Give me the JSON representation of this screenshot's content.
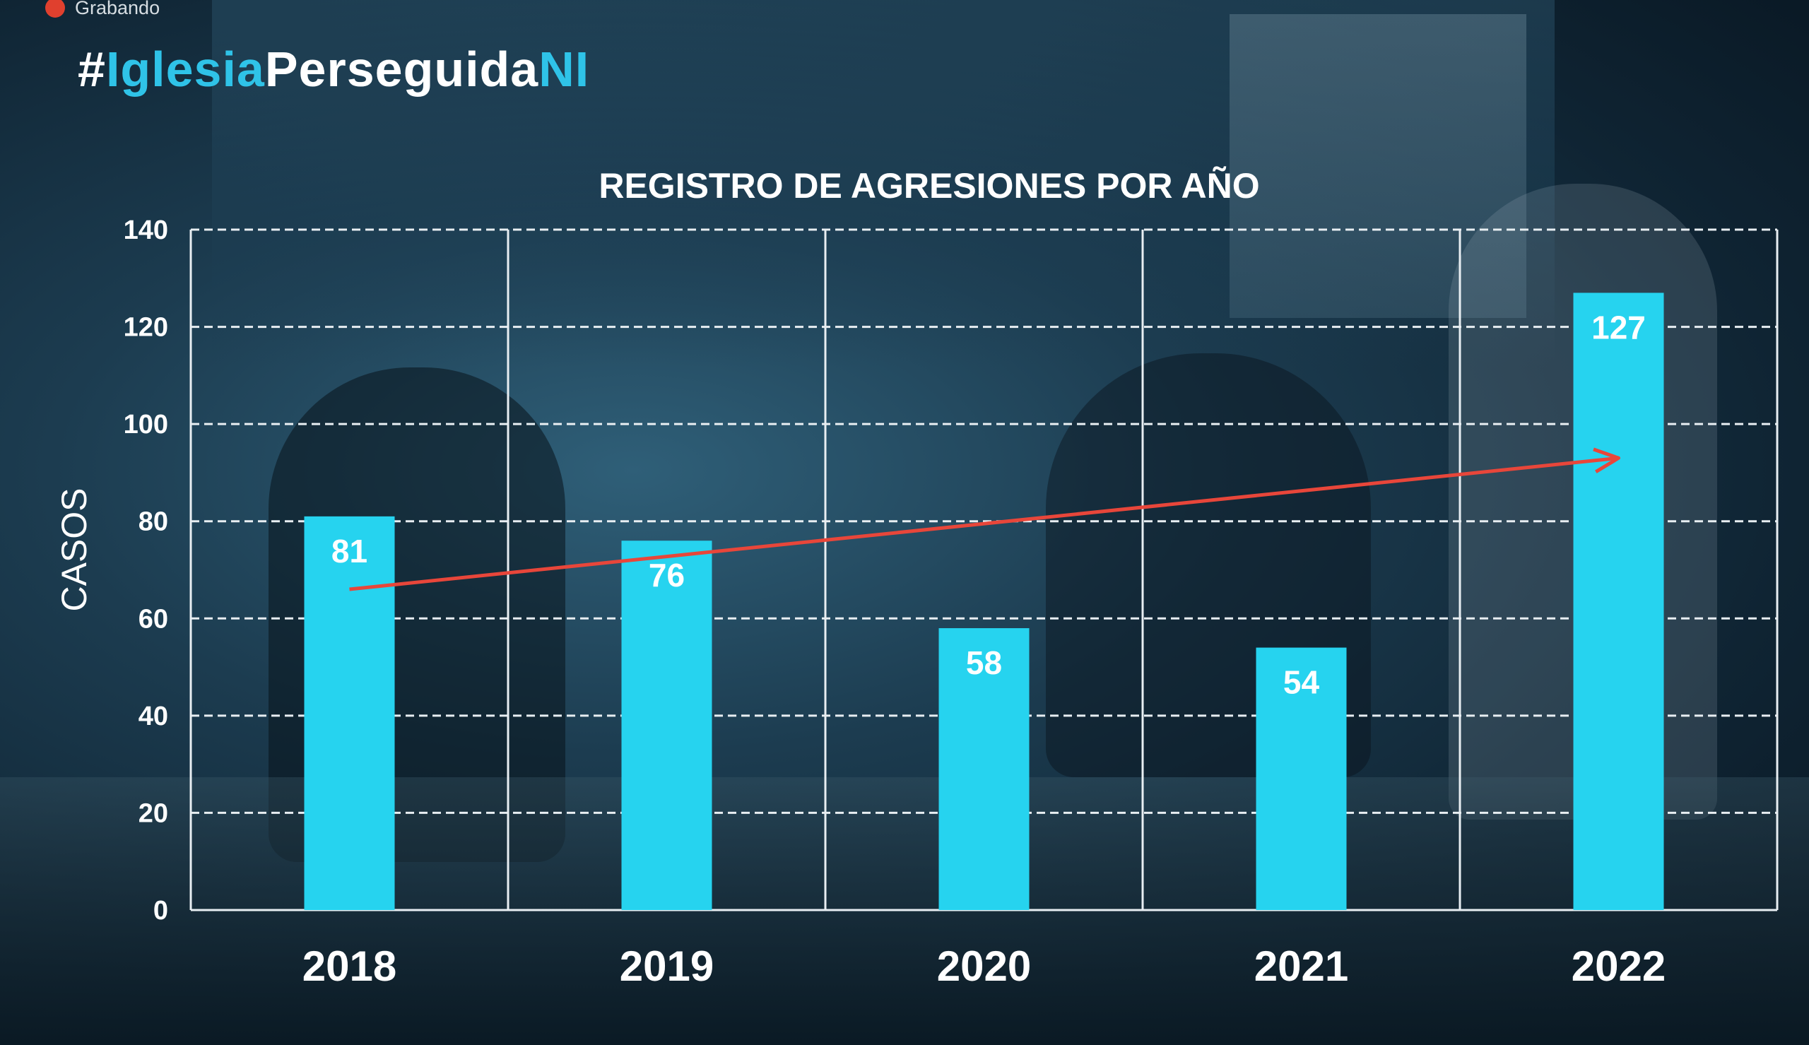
{
  "recording": {
    "label": "Grabando",
    "icon": "record-dot-icon",
    "color": "#e0402e"
  },
  "hashtag": {
    "parts": [
      {
        "text": "#",
        "color": "#ffffff"
      },
      {
        "text": "Iglesia",
        "color": "#2fc3e8"
      },
      {
        "text": "Perseguida",
        "color": "#ffffff"
      },
      {
        "text": "NI",
        "color": "#2fc3e8"
      }
    ]
  },
  "chart_data": {
    "type": "bar",
    "title": "REGISTRO DE AGRESIONES POR AÑO",
    "ylabel": "CASOS",
    "xlabel": "",
    "categories": [
      "2018",
      "2019",
      "2020",
      "2021",
      "2022"
    ],
    "values": [
      81,
      76,
      58,
      54,
      127
    ],
    "data_labels": [
      "81",
      "76",
      "58",
      "54",
      "127"
    ],
    "ylim": [
      0,
      140
    ],
    "yticks": [
      "0",
      "20",
      "40",
      "60",
      "80",
      "100",
      "120",
      "140"
    ],
    "grid": true,
    "bar_color": "#26d3ef",
    "trend_arrow": {
      "from_x": "2018",
      "from_y": 66,
      "to_x": "2022",
      "to_y": 93,
      "color": "#e8463a"
    }
  }
}
